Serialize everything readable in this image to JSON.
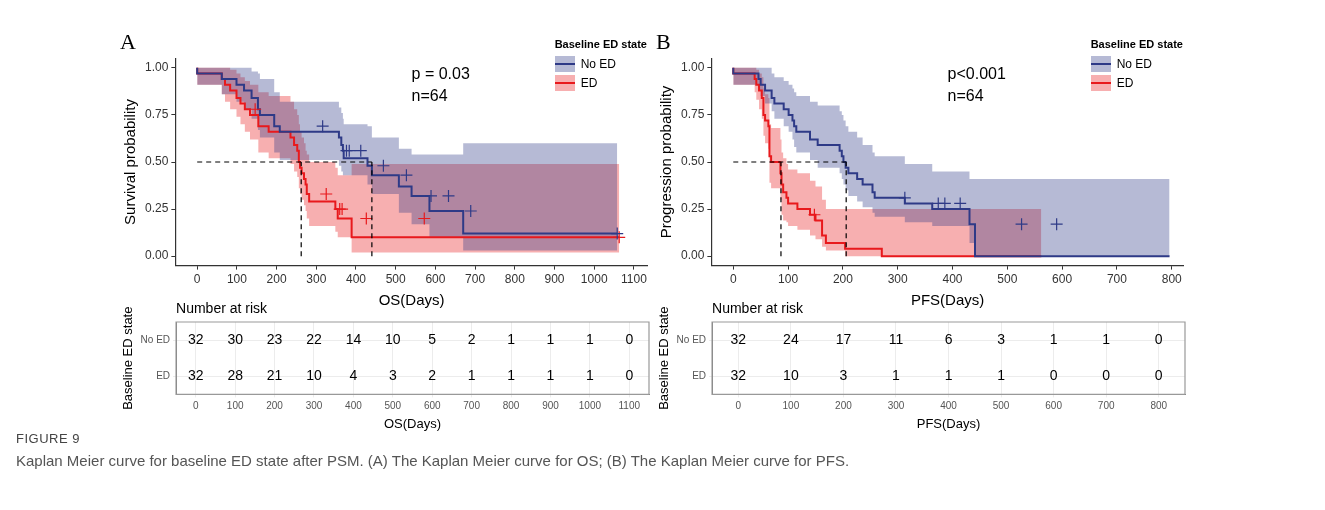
{
  "chart_data": [
    {
      "type": "step",
      "title": "A",
      "xlabel": "OS(Days)",
      "ylabel": "Survival probability",
      "legend_title": "Baseline ED state",
      "legend": "top right",
      "grid": false,
      "xlim": [
        -55,
        1135
      ],
      "xticks": [
        0,
        100,
        200,
        300,
        400,
        500,
        600,
        700,
        800,
        900,
        1000,
        1100
      ],
      "ylim": [
        -0.05,
        1.05
      ],
      "yticks": [
        {
          "value": 0,
          "label": "0.00"
        },
        {
          "value": 0.25,
          "label": "0.25"
        },
        {
          "value": 0.5,
          "label": "0.50"
        },
        {
          "value": 0.75,
          "label": "0.75"
        },
        {
          "value": 1,
          "label": "1.00"
        }
      ],
      "annotations": [
        "p = 0.03",
        "n=64"
      ],
      "ref_lines": [
        {
          "axis": "y",
          "value": 0.5,
          "color": "#000000",
          "line_style": "dashed"
        },
        {
          "axis": "x",
          "value": 262,
          "color": "#000000",
          "line_style": "dashed"
        },
        {
          "axis": "x",
          "value": 440,
          "color": "#000000",
          "line_style": "dashed"
        }
      ],
      "series": [
        {
          "name": "No ED",
          "color": "#2e3a87",
          "x": [
            0,
            62,
            99,
            118,
            137,
            153,
            158,
            194,
            208,
            357,
            363,
            367,
            369,
            429,
            440,
            508,
            540,
            585,
            670,
            796,
            1058
          ],
          "values": [
            1,
            0.97,
            0.94,
            0.91,
            0.88,
            0.84,
            0.78,
            0.75,
            0.69,
            0.66,
            0.63,
            0.59,
            0.56,
            0.52,
            0.48,
            0.43,
            0.37,
            0.32,
            0.24,
            0.12,
            0.12
          ],
          "lower": [
            1,
            0.91,
            0.86,
            0.82,
            0.78,
            0.73,
            0.67,
            0.63,
            0.55,
            0.51,
            0.48,
            0.45,
            0.43,
            0.43,
            0.38,
            0.33,
            0.23,
            0.17,
            0.1,
            0.03,
            0.03
          ],
          "upper": [
            1,
            1,
            1,
            1,
            1,
            0.98,
            0.97,
            0.94,
            0.87,
            0.82,
            0.79,
            0.76,
            0.73,
            0.7,
            0.69,
            0.63,
            0.57,
            0.54,
            0.54,
            0.6,
            0.6
          ]
        },
        {
          "name": "ED",
          "color": "#e8191c",
          "x": [
            0,
            62,
            70,
            83,
            99,
            109,
            120,
            133,
            154,
            180,
            235,
            244,
            252,
            256,
            259,
            263,
            269,
            273,
            276,
            282,
            348,
            354,
            389,
            659,
            1063
          ],
          "values": [
            1,
            0.97,
            0.94,
            0.91,
            0.88,
            0.84,
            0.81,
            0.78,
            0.75,
            0.69,
            0.66,
            0.63,
            0.59,
            0.56,
            0.5,
            0.47,
            0.44,
            0.41,
            0.38,
            0.33,
            0.29,
            0.25,
            0.2,
            0.1,
            0.1
          ],
          "lower": [
            1,
            0.91,
            0.86,
            0.82,
            0.78,
            0.74,
            0.7,
            0.66,
            0.62,
            0.55,
            0.52,
            0.49,
            0.45,
            0.42,
            0.36,
            0.33,
            0.3,
            0.27,
            0.24,
            0.2,
            0.16,
            0.13,
            0.1,
            0.02,
            0.02
          ],
          "upper": [
            1,
            1,
            1,
            1,
            0.99,
            0.97,
            0.95,
            0.93,
            0.91,
            0.87,
            0.85,
            0.82,
            0.78,
            0.75,
            0.7,
            0.66,
            0.63,
            0.6,
            0.56,
            0.54,
            0.5,
            0.47,
            0.43,
            0.49,
            0.49
          ]
        },
        {
          "type": "scatter",
          "marker": "cross",
          "color": "#2e3a87",
          "x": [
            316,
            376,
            383,
            412,
            469,
            527,
            589,
            633,
            689,
            1058
          ],
          "values": [
            0.69,
            0.56,
            0.56,
            0.56,
            0.48,
            0.43,
            0.32,
            0.32,
            0.24,
            0.12
          ]
        },
        {
          "type": "scatter",
          "marker": "cross",
          "color": "#e8191c",
          "x": [
            146,
            325,
            359,
            365,
            426,
            572,
            1063
          ],
          "values": [
            0.78,
            0.33,
            0.25,
            0.25,
            0.2,
            0.2,
            0.1
          ]
        }
      ]
    },
    {
      "type": "step",
      "title": "B",
      "xlabel": "PFS(Days)",
      "ylabel": "Progression probability",
      "legend_title": "Baseline ED state",
      "legend": "top right",
      "grid": false,
      "xlim": [
        -40,
        822
      ],
      "xticks": [
        0,
        100,
        200,
        300,
        400,
        500,
        600,
        700,
        800
      ],
      "ylim": [
        -0.05,
        1.05
      ],
      "yticks": [
        {
          "value": 0,
          "label": "0.00"
        },
        {
          "value": 0.25,
          "label": "0.25"
        },
        {
          "value": 0.5,
          "label": "0.50"
        },
        {
          "value": 0.75,
          "label": "0.75"
        },
        {
          "value": 1,
          "label": "1.00"
        }
      ],
      "annotations": [
        "p<0.001",
        "n=64"
      ],
      "ref_lines": [
        {
          "axis": "y",
          "value": 0.5,
          "color": "#000000",
          "line_style": "dashed"
        },
        {
          "axis": "x",
          "value": 87,
          "color": "#000000",
          "line_style": "dashed"
        },
        {
          "axis": "x",
          "value": 206,
          "color": "#000000",
          "line_style": "dashed"
        }
      ],
      "series": [
        {
          "name": "No ED",
          "color": "#2e3a87",
          "x": [
            0,
            46,
            50,
            58,
            70,
            75,
            92,
            101,
            108,
            111,
            115,
            140,
            154,
            194,
            198,
            201,
            205,
            210,
            226,
            236,
            254,
            258,
            313,
            363,
            431,
            441,
            796
          ],
          "values": [
            1,
            0.97,
            0.94,
            0.91,
            0.88,
            0.84,
            0.81,
            0.78,
            0.75,
            0.72,
            0.69,
            0.66,
            0.62,
            0.59,
            0.56,
            0.53,
            0.5,
            0.47,
            0.44,
            0.41,
            0.38,
            0.34,
            0.31,
            0.28,
            0.25,
            0.17,
            0
          ],
          "lower": [
            1,
            0.91,
            0.88,
            0.85,
            0.81,
            0.77,
            0.73,
            0.69,
            0.66,
            0.62,
            0.58,
            0.55,
            0.51,
            0.47,
            0.44,
            0.41,
            0.38,
            0.35,
            0.32,
            0.29,
            0.26,
            0.23,
            0.21,
            0.18,
            0.16,
            0.07,
            0
          ],
          "upper": [
            1,
            1,
            1,
            1,
            1,
            0.97,
            0.95,
            0.93,
            0.91,
            0.89,
            0.87,
            0.85,
            0.82,
            0.8,
            0.77,
            0.75,
            0.72,
            0.69,
            0.66,
            0.63,
            0.59,
            0.55,
            0.53,
            0.49,
            0.45,
            0.41,
            0.41
          ]
        },
        {
          "name": "ED",
          "color": "#e8191c",
          "x": [
            0,
            39,
            42,
            47,
            52,
            55,
            58,
            64,
            66,
            69,
            86,
            88,
            91,
            97,
            100,
            117,
            140,
            150,
            162,
            169,
            204,
            271,
            562
          ],
          "values": [
            1,
            0.97,
            0.94,
            0.91,
            0.88,
            0.84,
            0.75,
            0.72,
            0.69,
            0.53,
            0.5,
            0.44,
            0.38,
            0.34,
            0.31,
            0.28,
            0.25,
            0.22,
            0.19,
            0.11,
            0.07,
            0.04,
            0
          ],
          "lower": [
            1,
            0.91,
            0.87,
            0.83,
            0.78,
            0.73,
            0.64,
            0.6,
            0.57,
            0.39,
            0.36,
            0.3,
            0.22,
            0.19,
            0.18,
            0.16,
            0.14,
            0.11,
            0.09,
            0.05,
            0.03,
            0,
            0
          ],
          "upper": [
            1,
            1,
            1,
            0.99,
            0.97,
            0.95,
            0.89,
            0.86,
            0.84,
            0.7,
            0.68,
            0.62,
            0.55,
            0.52,
            0.49,
            0.46,
            0.44,
            0.4,
            0.37,
            0.3,
            0.25,
            0.25,
            0.25
          ]
        },
        {
          "type": "scatter",
          "marker": "cross",
          "color": "#2e3a87",
          "x": [
            313,
            374,
            386,
            414,
            526,
            590
          ],
          "values": [
            0.31,
            0.28,
            0.28,
            0.28,
            0.17,
            0.17
          ]
        },
        {
          "type": "scatter",
          "marker": "cross",
          "color": "#e8191c",
          "x": [
            148
          ],
          "values": [
            0.22
          ]
        }
      ]
    },
    {
      "type": "heatmap",
      "title": "Number at risk",
      "xlabel": "OS(Days)",
      "ylabel": "Baseline ED state",
      "grid": true,
      "data_labels": true,
      "categories": [
        "0",
        "100",
        "200",
        "300",
        "400",
        "500",
        "600",
        "700",
        "800",
        "900",
        "1000",
        "1100"
      ],
      "y_categories": [
        "No ED",
        "ED"
      ],
      "cells": [
        [
          32,
          30,
          23,
          22,
          14,
          10,
          5,
          2,
          1,
          1,
          1,
          0
        ],
        [
          32,
          28,
          21,
          10,
          4,
          3,
          2,
          1,
          1,
          1,
          1,
          0
        ]
      ]
    },
    {
      "type": "heatmap",
      "title": "Number at risk",
      "xlabel": "PFS(Days)",
      "ylabel": "Baseline ED state",
      "grid": true,
      "data_labels": true,
      "categories": [
        "0",
        "100",
        "200",
        "300",
        "400",
        "500",
        "600",
        "700",
        "800"
      ],
      "y_categories": [
        "No ED",
        "ED"
      ],
      "cells": [
        [
          32,
          24,
          17,
          11,
          6,
          3,
          1,
          1,
          0
        ],
        [
          32,
          10,
          3,
          1,
          1,
          1,
          0,
          0,
          0
        ]
      ]
    },
    {
      "type": "other",
      "title": "FIGURE 9",
      "annotations": [
        "Kaplan Meier curve for baseline ED state after PSM. (A) The Kaplan Meier curve for OS; (B) The Kaplan Meier curve for PFS."
      ]
    }
  ]
}
